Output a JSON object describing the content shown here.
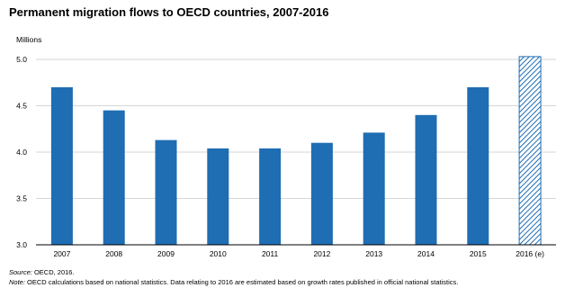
{
  "chart_data": {
    "type": "bar",
    "title": "Permanent migration flows to OECD countries, 2007-2016",
    "ylabel": "Millions",
    "xlabel": "",
    "categories": [
      "2007",
      "2008",
      "2009",
      "2010",
      "2011",
      "2012",
      "2013",
      "2014",
      "2015",
      "2016 (e)"
    ],
    "values": [
      4.7,
      4.45,
      4.13,
      4.04,
      4.04,
      4.1,
      4.21,
      4.4,
      4.7,
      5.03
    ],
    "estimated": [
      false,
      false,
      false,
      false,
      false,
      false,
      false,
      false,
      false,
      true
    ],
    "ylim": [
      3.0,
      5.0
    ],
    "yticks": [
      "3.0",
      "3.5",
      "4.0",
      "4.5",
      "5.0"
    ],
    "grid": true,
    "bar_color": "#1f6db3",
    "estimate_hatch_color": "#1f6db3",
    "gridline_color": "#c9c9c9"
  },
  "source": {
    "label": "Source:",
    "text": "OECD, 2016."
  },
  "note": {
    "label": "Note:",
    "text": "OECD calculations based on national statistics. Data relating to 2016 are estimated based on growth rates published in official national statistics."
  }
}
